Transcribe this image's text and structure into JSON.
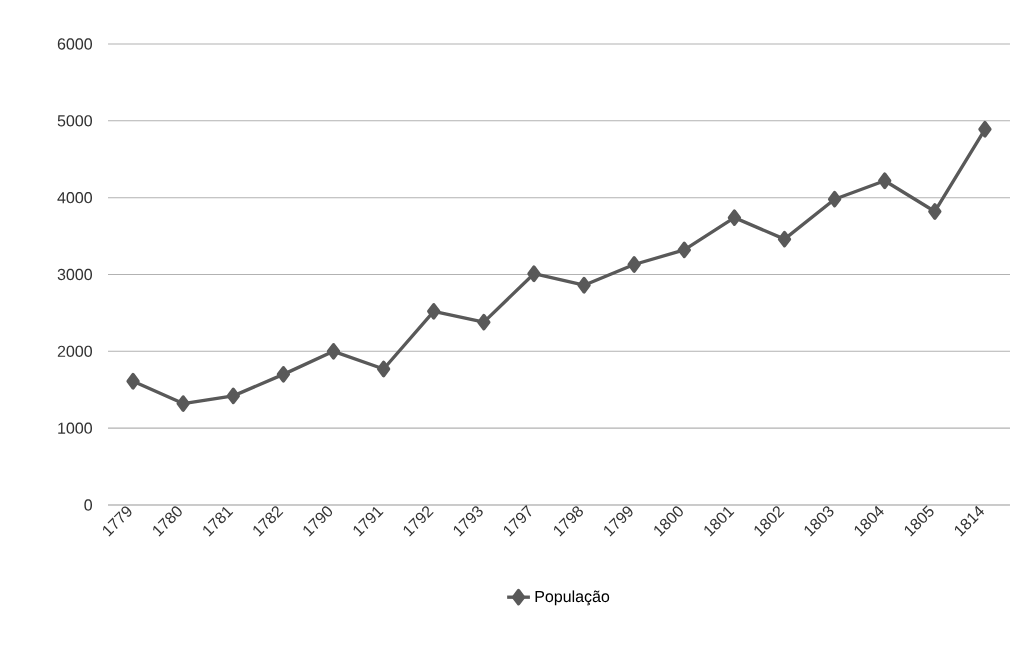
{
  "chart_data": {
    "type": "line",
    "categories": [
      "1779",
      "1780",
      "1781",
      "1782",
      "1790",
      "1791",
      "1792",
      "1793",
      "1797",
      "1798",
      "1799",
      "1800",
      "1801",
      "1802",
      "1803",
      "1804",
      "1805",
      "1814"
    ],
    "series": [
      {
        "name": "População",
        "color": "#595959",
        "values": [
          1610,
          1320,
          1420,
          1700,
          2000,
          1770,
          2520,
          2380,
          3010,
          2860,
          3130,
          3320,
          3740,
          3460,
          3980,
          4220,
          3820,
          4890
        ]
      }
    ],
    "ylim": [
      0,
      6000
    ],
    "yticks": [
      0,
      1000,
      2000,
      3000,
      4000,
      5000,
      6000
    ],
    "grid": "y",
    "legend": "bottom",
    "marker": "diamond",
    "line_style": "solid"
  }
}
